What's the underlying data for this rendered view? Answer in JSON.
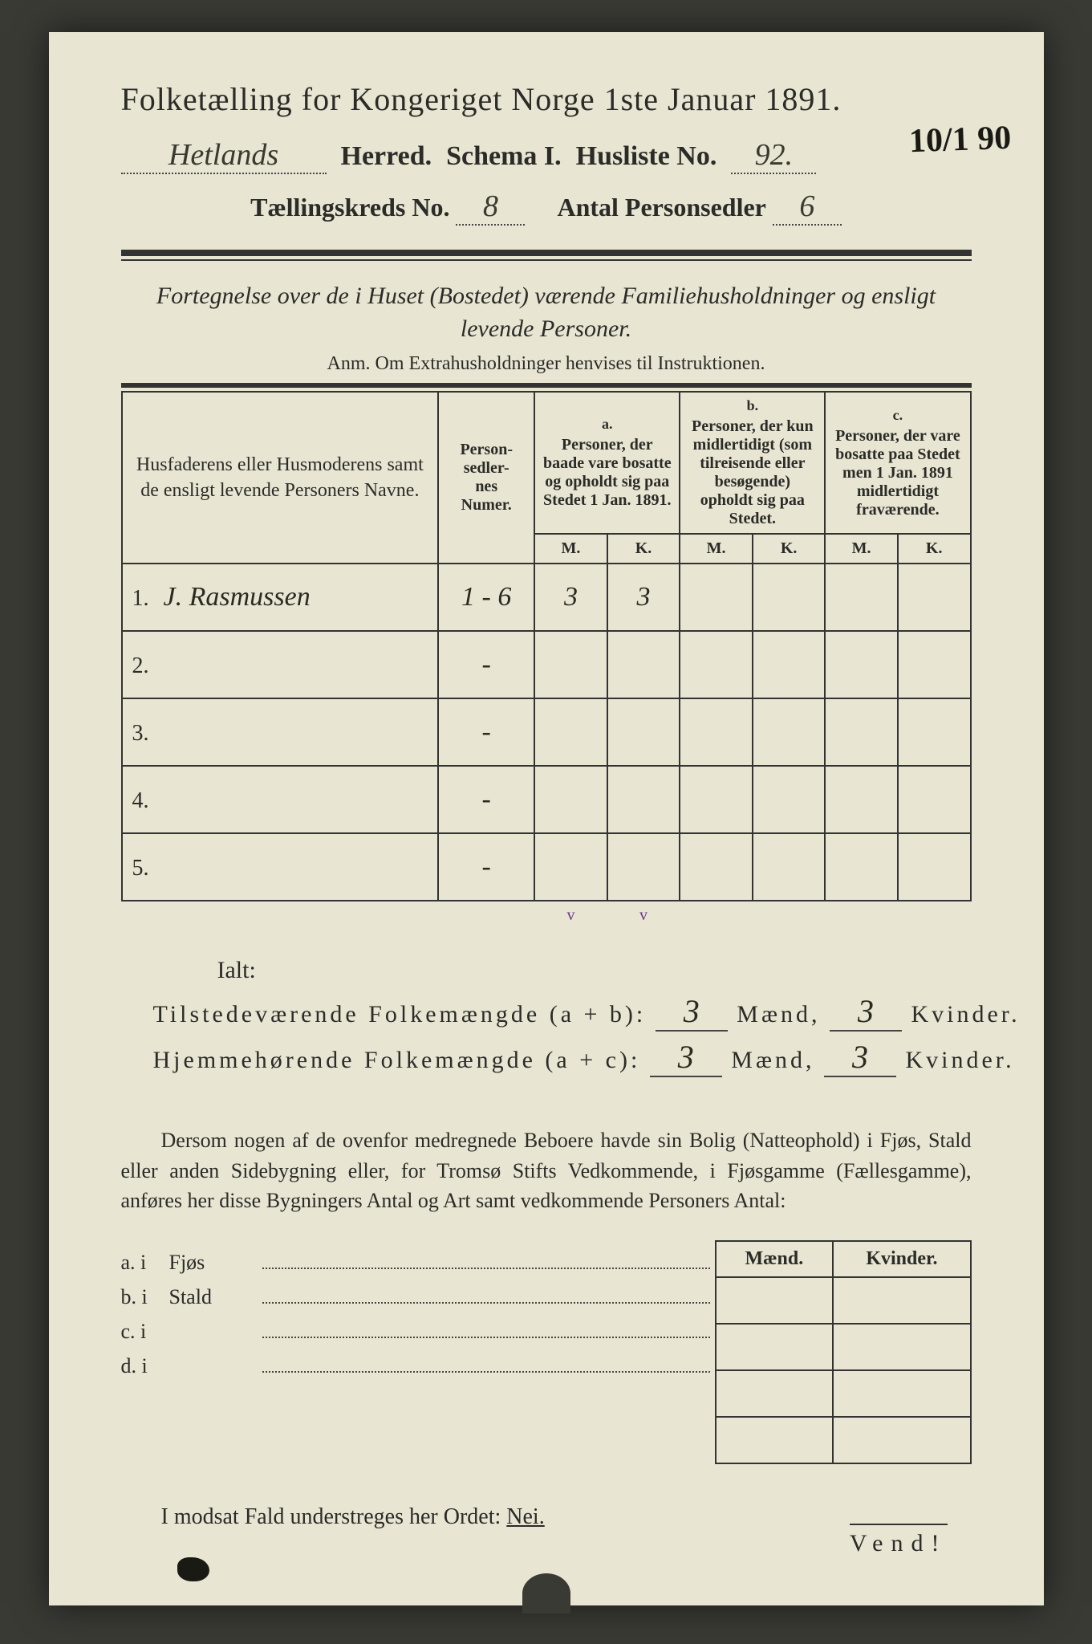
{
  "header": {
    "title": "Folketælling for Kongeriget Norge 1ste Januar 1891.",
    "herred_value": "Hetlands",
    "herred_label": "Herred.",
    "schema_label": "Schema I.",
    "husliste_label": "Husliste No.",
    "husliste_value": "92.",
    "kreds_label": "Tællingskreds No.",
    "kreds_value": "8",
    "antal_label": "Antal Personsedler",
    "antal_value": "6",
    "corner_note": "10/1 90"
  },
  "fortegnelse": "Fortegnelse over de i Huset (Bostedet) værende Familiehusholdninger og ensligt levende Personer.",
  "anm": "Anm. Om Extrahusholdninger henvises til Instruktionen.",
  "table": {
    "col_names": "Husfaderens eller Husmoderens samt de ensligt levende Personers Navne.",
    "col_numer": "Person-\nsedler-\nnes\nNumer.",
    "col_a_label": "a.",
    "col_a": "Personer, der baade vare bosatte og opholdt sig paa Stedet 1 Jan. 1891.",
    "col_b_label": "b.",
    "col_b": "Personer, der kun midlertidigt (som tilreisende eller besøgende) opholdt sig paa Stedet.",
    "col_c_label": "c.",
    "col_c": "Personer, der vare bosatte paa Stedet men 1 Jan. 1891 midlertidigt fraværende.",
    "m": "M.",
    "k": "K.",
    "rows": [
      {
        "n": "1.",
        "name": "J. Rasmussen",
        "numer": "1 - 6",
        "am": "3",
        "ak": "3",
        "bm": "",
        "bk": "",
        "cm": "",
        "ck": ""
      },
      {
        "n": "2.",
        "name": "",
        "numer": "-",
        "am": "",
        "ak": "",
        "bm": "",
        "bk": "",
        "cm": "",
        "ck": ""
      },
      {
        "n": "3.",
        "name": "",
        "numer": "-",
        "am": "",
        "ak": "",
        "bm": "",
        "bk": "",
        "cm": "",
        "ck": ""
      },
      {
        "n": "4.",
        "name": "",
        "numer": "-",
        "am": "",
        "ak": "",
        "bm": "",
        "bk": "",
        "cm": "",
        "ck": ""
      },
      {
        "n": "5.",
        "name": "",
        "numer": "-",
        "am": "",
        "ak": "",
        "bm": "",
        "bk": "",
        "cm": "",
        "ck": ""
      }
    ],
    "check_am": "v",
    "check_ak": "v"
  },
  "ialt": "Ialt:",
  "sums": {
    "line1_label": "Tilstedeværende Folkemængde (a + b):",
    "line1_m": "3",
    "line1_k": "3",
    "line2_label": "Hjemmehørende Folkemængde (a + c):",
    "line2_m": "3",
    "line2_k": "3",
    "maend": "Mænd,",
    "kvinder": "Kvinder."
  },
  "paragraph": "Dersom nogen af de ovenfor medregnede Beboere havde sin Bolig (Natteophold) i Fjøs, Stald eller anden Sidebygning eller, for Tromsø Stifts Vedkommende, i Fjøsgamme (Fællesgamme), anføres her disse Bygningers Antal og Art samt vedkommende Personers Antal:",
  "buildings": {
    "maend": "Mænd.",
    "kvinder": "Kvinder.",
    "rows": [
      {
        "lbl": "a.  i",
        "txt": "Fjøs"
      },
      {
        "lbl": "b.  i",
        "txt": "Stald"
      },
      {
        "lbl": "c.  i",
        "txt": ""
      },
      {
        "lbl": "d.  i",
        "txt": ""
      }
    ]
  },
  "nei_line": "I modsat Fald understreges her Ordet:",
  "nei": "Nei.",
  "vend": "Vend!"
}
